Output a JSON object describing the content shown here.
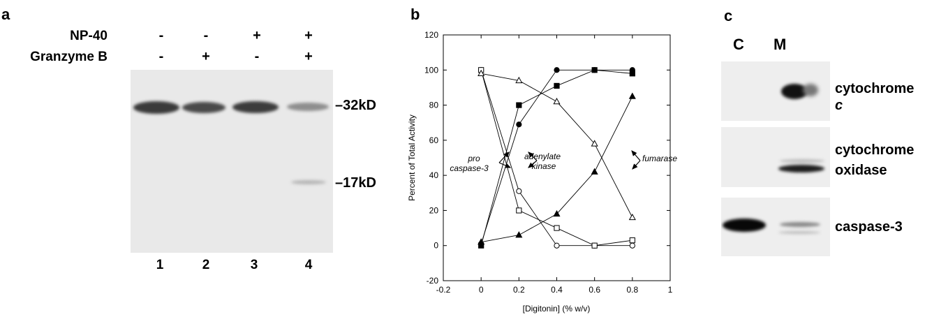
{
  "panel_a": {
    "label": "a",
    "row_labels": [
      "NP-40",
      "Granzyme B"
    ],
    "np40_signs": [
      "-",
      "-",
      "+",
      "+"
    ],
    "granzyme_signs": [
      "-",
      "+",
      "-",
      "+"
    ],
    "markers": [
      "–32kD",
      "–17kD"
    ],
    "lanes": [
      "1",
      "2",
      "3",
      "4"
    ]
  },
  "panel_b": {
    "label": "b",
    "annotations": {
      "pro_line1": "pro",
      "pro_line2": "caspase-3",
      "adenylate_line1": "adenylate",
      "adenylate_line2": "kinase",
      "fumarase": "fumarase"
    }
  },
  "panel_c": {
    "label": "c",
    "lanes": [
      "C",
      "M"
    ],
    "blot_labels": {
      "cytochrome_c_text": "cytochrome ",
      "cytochrome_c_italic": "c",
      "oxidase_line1": "cytochrome",
      "oxidase_line2": "oxidase",
      "caspase3": "caspase-3"
    }
  },
  "chart_data": {
    "type": "line",
    "title": "",
    "xlabel": "[Digitonin]  (% w/v)",
    "ylabel": "Percent of Total Activity",
    "xlim": [
      -0.2,
      1
    ],
    "ylim": [
      -20,
      120
    ],
    "x_ticks": [
      "-0.2",
      "0",
      "0.2",
      "0.4",
      "0.6",
      "0.8",
      "1"
    ],
    "y_ticks": [
      "-20",
      "0",
      "20",
      "40",
      "60",
      "80",
      "100",
      "120"
    ],
    "grid": false,
    "series": [
      {
        "marker": "filled-circle",
        "x": [
          0,
          0.2,
          0.4,
          0.6,
          0.8
        ],
        "y": [
          1,
          69,
          100,
          100,
          100
        ]
      },
      {
        "marker": "open-circle",
        "x": [
          0,
          0.2,
          0.4,
          0.6,
          0.8
        ],
        "y": [
          100,
          31,
          0,
          0,
          0
        ]
      },
      {
        "marker": "filled-square",
        "x": [
          0,
          0.2,
          0.4,
          0.6,
          0.8
        ],
        "y": [
          0,
          80,
          91,
          100,
          98
        ]
      },
      {
        "marker": "open-square",
        "x": [
          0,
          0.2,
          0.4,
          0.6,
          0.8
        ],
        "y": [
          100,
          20,
          10,
          0,
          3
        ]
      },
      {
        "marker": "filled-triangle",
        "x": [
          0,
          0.2,
          0.4,
          0.6,
          0.8
        ],
        "y": [
          2,
          6,
          18,
          42,
          85
        ]
      },
      {
        "marker": "open-triangle",
        "x": [
          0,
          0.2,
          0.4,
          0.6,
          0.8
        ],
        "y": [
          98,
          94,
          82,
          58,
          16
        ]
      }
    ]
  }
}
